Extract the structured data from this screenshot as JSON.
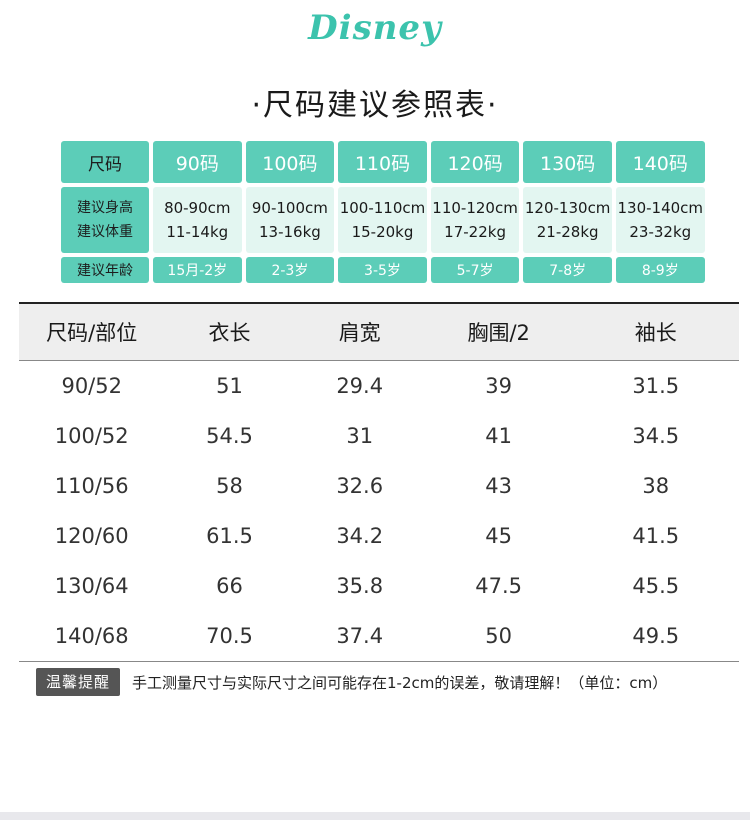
{
  "brand": "Disney",
  "title": "·尺码建议参照表·",
  "size_grid": {
    "label_size": "尺码",
    "label_height": "建议身高",
    "label_weight": "建议体重",
    "label_age": "建议年龄",
    "sizes": [
      {
        "size": "90码",
        "height": "80-90cm",
        "weight": "11-14kg",
        "age": "15月-2岁"
      },
      {
        "size": "100码",
        "height": "90-100cm",
        "weight": "13-16kg",
        "age": "2-3岁"
      },
      {
        "size": "110码",
        "height": "100-110cm",
        "weight": "15-20kg",
        "age": "3-5岁"
      },
      {
        "size": "120码",
        "height": "110-120cm",
        "weight": "17-22kg",
        "age": "5-7岁"
      },
      {
        "size": "130码",
        "height": "120-130cm",
        "weight": "21-28kg",
        "age": "7-8岁"
      },
      {
        "size": "140码",
        "height": "130-140cm",
        "weight": "23-32kg",
        "age": "8-9岁"
      }
    ]
  },
  "measurements": {
    "headers": [
      "尺码/部位",
      "衣长",
      "肩宽",
      "胸围/2",
      "袖长"
    ],
    "rows": [
      [
        "90/52",
        "51",
        "29.4",
        "39",
        "31.5"
      ],
      [
        "100/52",
        "54.5",
        "31",
        "41",
        "34.5"
      ],
      [
        "110/56",
        "58",
        "32.6",
        "43",
        "38"
      ],
      [
        "120/60",
        "61.5",
        "34.2",
        "45",
        "41.5"
      ],
      [
        "130/64",
        "66",
        "35.8",
        "47.5",
        "45.5"
      ],
      [
        "140/68",
        "70.5",
        "37.4",
        "50",
        "49.5"
      ]
    ]
  },
  "note": {
    "badge": "温馨提醒",
    "text": "手工测量尺寸与实际尺寸之间可能存在1-2cm的误差，敬请理解！（单位：cm）"
  },
  "colors": {
    "accent": "#5ccdb8",
    "accent_light": "#e3f6f1",
    "logo": "#3cc3ad"
  }
}
